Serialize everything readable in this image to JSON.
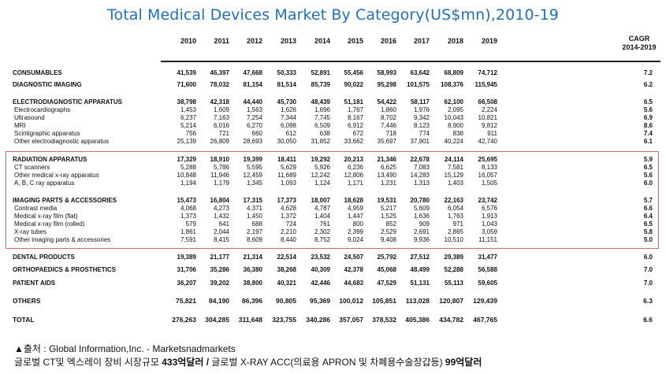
{
  "title": "Total Medical Devices Market By Category(US$mn),2010-19",
  "years": [
    "2010",
    "2011",
    "2012",
    "2013",
    "2014",
    "2015",
    "2016",
    "2017",
    "2018",
    "2019"
  ],
  "cagr_header": [
    "CAGR",
    "2014-2019"
  ],
  "rows": [
    {
      "label": "CONSUMABLES",
      "type": "cat",
      "values": [
        "41,539",
        "46,397",
        "47,668",
        "50,333",
        "52,891",
        "55,456",
        "58,993",
        "63,642",
        "68,809",
        "74,712"
      ],
      "cagr": "7.2"
    },
    {
      "label": "DIAGNOSTIC IMAGING",
      "type": "cat",
      "values": [
        "71,600",
        "78,032",
        "81,154",
        "81,514",
        "85,739",
        "90,022",
        "95,298",
        "101,575",
        "108,376",
        "115,945"
      ],
      "cagr": "6.2"
    },
    {
      "label": "ELECTRODIAGNOSTIC APPARATUS",
      "type": "group",
      "values": [
        "38,798",
        "42,318",
        "44,440",
        "45,730",
        "48,439",
        "51,181",
        "54,422",
        "58,117",
        "62,100",
        "66,508"
      ],
      "cagr": "6.5"
    },
    {
      "label": "Electrocardiographs",
      "type": "sub",
      "values": [
        "1,453",
        "1,609",
        "1,563",
        "1,626",
        "1,696",
        "1,767",
        "1,860",
        "1,976",
        "2,095",
        "2,224"
      ],
      "cagr": "5.6"
    },
    {
      "label": "Ultrasound",
      "type": "sub",
      "values": [
        "6,237",
        "7,163",
        "7,254",
        "7,344",
        "7,745",
        "8,167",
        "8,702",
        "9,342",
        "10,043",
        "10,821"
      ],
      "cagr": "6.9"
    },
    {
      "label": "MRI",
      "type": "sub",
      "values": [
        "5,214",
        "6,016",
        "6,270",
        "6,098",
        "6,509",
        "6,912",
        "7,446",
        "8,123",
        "8,900",
        "9,812"
      ],
      "cagr": "8.6"
    },
    {
      "label": "Scintigraphic apparatus",
      "type": "sub",
      "values": [
        "756",
        "721",
        "660",
        "612",
        "638",
        "672",
        "718",
        "774",
        "838",
        "911"
      ],
      "cagr": "7.4"
    },
    {
      "label": "Other electrodiagnostic apparatus",
      "type": "sub",
      "values": [
        "25,139",
        "26,809",
        "28,693",
        "30,050",
        "31,852",
        "33,662",
        "35,697",
        "37,901",
        "40,224",
        "42,740"
      ],
      "cagr": "6.1"
    },
    {
      "label": "RADIATION APPARATUS",
      "type": "group",
      "values": [
        "17,329",
        "18,910",
        "19,399",
        "18,411",
        "19,292",
        "20,213",
        "21,346",
        "22,678",
        "24,114",
        "25,695"
      ],
      "cagr": "5.9"
    },
    {
      "label": "CT scanners",
      "type": "sub",
      "values": [
        "5,288",
        "5,786",
        "5,595",
        "5,629",
        "5,926",
        "6,236",
        "6,625",
        "7,083",
        "7,581",
        "8,133"
      ],
      "cagr": "6.5"
    },
    {
      "label": "Other medical x-ray apparatus",
      "type": "sub",
      "values": [
        "10,848",
        "11,946",
        "12,459",
        "11,689",
        "12,242",
        "12,806",
        "13,490",
        "14,283",
        "15,129",
        "16,057"
      ],
      "cagr": "5.6"
    },
    {
      "label": "A, B, C ray apparatus",
      "type": "sub",
      "values": [
        "1,194",
        "1,179",
        "1,345",
        "1,093",
        "1,124",
        "1,171",
        "1,231",
        "1,313",
        "1,403",
        "1,505"
      ],
      "cagr": "6.0"
    },
    {
      "label": "IMAGING PARTS & ACCESSORIES",
      "type": "group",
      "values": [
        "15,473",
        "16,804",
        "17,315",
        "17,373",
        "18,007",
        "18,628",
        "19,531",
        "20,780",
        "22,163",
        "23,742"
      ],
      "cagr": "5.7"
    },
    {
      "label": "Contrast media",
      "type": "sub",
      "values": [
        "4,068",
        "4,273",
        "4,371",
        "4,628",
        "4,787",
        "4,959",
        "5,217",
        "5,609",
        "6,054",
        "6,576"
      ],
      "cagr": "6.6"
    },
    {
      "label": "Medical x-ray film (flat)",
      "type": "sub",
      "values": [
        "1,373",
        "1,432",
        "1,450",
        "1,372",
        "1,404",
        "1,447",
        "1,525",
        "1,636",
        "1,763",
        "1,913"
      ],
      "cagr": "6.4"
    },
    {
      "label": "Medical x-ray film (rolled)",
      "type": "sub",
      "values": [
        "579",
        "641",
        "688",
        "724",
        "761",
        "800",
        "852",
        "909",
        "971",
        "1,043"
      ],
      "cagr": "6.5"
    },
    {
      "label": "X-ray tubes",
      "type": "sub",
      "values": [
        "1,861",
        "2,044",
        "2,197",
        "2,210",
        "2,302",
        "2,399",
        "2,529",
        "2,691",
        "2,865",
        "3,059"
      ],
      "cagr": "5.8"
    },
    {
      "label": "Other imaging parts & accessories",
      "type": "sub",
      "values": [
        "7,591",
        "8,415",
        "8,609",
        "8,440",
        "8,752",
        "9,024",
        "9,408",
        "9,936",
        "10,510",
        "11,151"
      ],
      "cagr": "5.0"
    },
    {
      "label": "DENTAL PRODUCTS",
      "type": "cat",
      "values": [
        "19,389",
        "21,177",
        "21,314",
        "22,514",
        "23,532",
        "24,507",
        "25,792",
        "27,512",
        "29,389",
        "31,477"
      ],
      "cagr": "6.0"
    },
    {
      "label": "ORTHOPAEDICS & PROSTHETICS",
      "type": "cat",
      "values": [
        "31,706",
        "35,286",
        "36,380",
        "38,268",
        "40,309",
        "42,378",
        "45,068",
        "48,499",
        "52,288",
        "56,588"
      ],
      "cagr": "7.0"
    },
    {
      "label": "PATIENT AIDS",
      "type": "cat",
      "values": [
        "36,207",
        "39,202",
        "38,800",
        "40,321",
        "42,446",
        "44,683",
        "47,529",
        "51,131",
        "55,113",
        "59,605"
      ],
      "cagr": "7.0"
    },
    {
      "label": "OTHERS",
      "type": "cat",
      "values": [
        "75,821",
        "84,190",
        "86,396",
        "90,805",
        "95,369",
        "100,012",
        "105,851",
        "113,028",
        "120,807",
        "129,439"
      ],
      "cagr": "6.3"
    },
    {
      "label": "TOTAL",
      "type": "cat",
      "values": [
        "276,263",
        "304,285",
        "311,648",
        "323,755",
        "340,286",
        "357,057",
        "378,532",
        "405,386",
        "434,782",
        "467,765"
      ],
      "cagr": "6.6"
    }
  ],
  "footer": {
    "source": "▲출처 : Global Information,Inc. - Marketsnadmarkets",
    "line2_a": "글로벌 CT및 엑스레이 장비 시장규모 ",
    "line2_b": "433억달러 / ",
    "line2_c": "글로벌 X-RAY ACC(의료용 APRON 및 차폐용수술장갑등) ",
    "line2_d": "99억달러"
  }
}
